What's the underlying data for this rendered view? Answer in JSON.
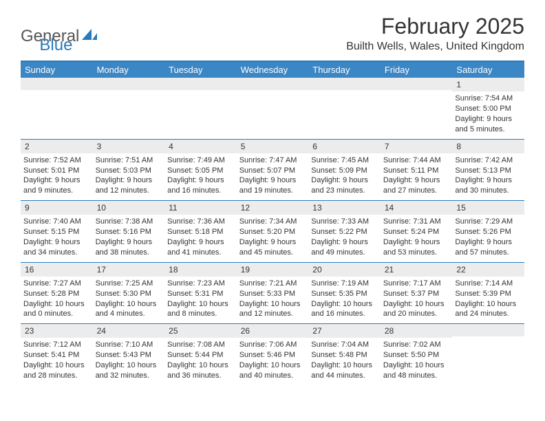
{
  "logo": {
    "part1": "General",
    "part2": "Blue"
  },
  "title": "February 2025",
  "location": "Builth Wells, Wales, United Kingdom",
  "colors": {
    "brand": "#2a7ab9",
    "header_bg": "#3b86c4",
    "day_band": "#ececec",
    "text": "#333333",
    "logo_gray": "#555555"
  },
  "weekdays": [
    "Sunday",
    "Monday",
    "Tuesday",
    "Wednesday",
    "Thursday",
    "Friday",
    "Saturday"
  ],
  "weeks": [
    [
      {
        "blank": true
      },
      {
        "blank": true
      },
      {
        "blank": true
      },
      {
        "blank": true
      },
      {
        "blank": true
      },
      {
        "blank": true
      },
      {
        "n": "1",
        "sunrise": "Sunrise: 7:54 AM",
        "sunset": "Sunset: 5:00 PM",
        "daylight": "Daylight: 9 hours and 5 minutes."
      }
    ],
    [
      {
        "n": "2",
        "sunrise": "Sunrise: 7:52 AM",
        "sunset": "Sunset: 5:01 PM",
        "daylight": "Daylight: 9 hours and 9 minutes."
      },
      {
        "n": "3",
        "sunrise": "Sunrise: 7:51 AM",
        "sunset": "Sunset: 5:03 PM",
        "daylight": "Daylight: 9 hours and 12 minutes."
      },
      {
        "n": "4",
        "sunrise": "Sunrise: 7:49 AM",
        "sunset": "Sunset: 5:05 PM",
        "daylight": "Daylight: 9 hours and 16 minutes."
      },
      {
        "n": "5",
        "sunrise": "Sunrise: 7:47 AM",
        "sunset": "Sunset: 5:07 PM",
        "daylight": "Daylight: 9 hours and 19 minutes."
      },
      {
        "n": "6",
        "sunrise": "Sunrise: 7:45 AM",
        "sunset": "Sunset: 5:09 PM",
        "daylight": "Daylight: 9 hours and 23 minutes."
      },
      {
        "n": "7",
        "sunrise": "Sunrise: 7:44 AM",
        "sunset": "Sunset: 5:11 PM",
        "daylight": "Daylight: 9 hours and 27 minutes."
      },
      {
        "n": "8",
        "sunrise": "Sunrise: 7:42 AM",
        "sunset": "Sunset: 5:13 PM",
        "daylight": "Daylight: 9 hours and 30 minutes."
      }
    ],
    [
      {
        "n": "9",
        "sunrise": "Sunrise: 7:40 AM",
        "sunset": "Sunset: 5:15 PM",
        "daylight": "Daylight: 9 hours and 34 minutes."
      },
      {
        "n": "10",
        "sunrise": "Sunrise: 7:38 AM",
        "sunset": "Sunset: 5:16 PM",
        "daylight": "Daylight: 9 hours and 38 minutes."
      },
      {
        "n": "11",
        "sunrise": "Sunrise: 7:36 AM",
        "sunset": "Sunset: 5:18 PM",
        "daylight": "Daylight: 9 hours and 41 minutes."
      },
      {
        "n": "12",
        "sunrise": "Sunrise: 7:34 AM",
        "sunset": "Sunset: 5:20 PM",
        "daylight": "Daylight: 9 hours and 45 minutes."
      },
      {
        "n": "13",
        "sunrise": "Sunrise: 7:33 AM",
        "sunset": "Sunset: 5:22 PM",
        "daylight": "Daylight: 9 hours and 49 minutes."
      },
      {
        "n": "14",
        "sunrise": "Sunrise: 7:31 AM",
        "sunset": "Sunset: 5:24 PM",
        "daylight": "Daylight: 9 hours and 53 minutes."
      },
      {
        "n": "15",
        "sunrise": "Sunrise: 7:29 AM",
        "sunset": "Sunset: 5:26 PM",
        "daylight": "Daylight: 9 hours and 57 minutes."
      }
    ],
    [
      {
        "n": "16",
        "sunrise": "Sunrise: 7:27 AM",
        "sunset": "Sunset: 5:28 PM",
        "daylight": "Daylight: 10 hours and 0 minutes."
      },
      {
        "n": "17",
        "sunrise": "Sunrise: 7:25 AM",
        "sunset": "Sunset: 5:30 PM",
        "daylight": "Daylight: 10 hours and 4 minutes."
      },
      {
        "n": "18",
        "sunrise": "Sunrise: 7:23 AM",
        "sunset": "Sunset: 5:31 PM",
        "daylight": "Daylight: 10 hours and 8 minutes."
      },
      {
        "n": "19",
        "sunrise": "Sunrise: 7:21 AM",
        "sunset": "Sunset: 5:33 PM",
        "daylight": "Daylight: 10 hours and 12 minutes."
      },
      {
        "n": "20",
        "sunrise": "Sunrise: 7:19 AM",
        "sunset": "Sunset: 5:35 PM",
        "daylight": "Daylight: 10 hours and 16 minutes."
      },
      {
        "n": "21",
        "sunrise": "Sunrise: 7:17 AM",
        "sunset": "Sunset: 5:37 PM",
        "daylight": "Daylight: 10 hours and 20 minutes."
      },
      {
        "n": "22",
        "sunrise": "Sunrise: 7:14 AM",
        "sunset": "Sunset: 5:39 PM",
        "daylight": "Daylight: 10 hours and 24 minutes."
      }
    ],
    [
      {
        "n": "23",
        "sunrise": "Sunrise: 7:12 AM",
        "sunset": "Sunset: 5:41 PM",
        "daylight": "Daylight: 10 hours and 28 minutes."
      },
      {
        "n": "24",
        "sunrise": "Sunrise: 7:10 AM",
        "sunset": "Sunset: 5:43 PM",
        "daylight": "Daylight: 10 hours and 32 minutes."
      },
      {
        "n": "25",
        "sunrise": "Sunrise: 7:08 AM",
        "sunset": "Sunset: 5:44 PM",
        "daylight": "Daylight: 10 hours and 36 minutes."
      },
      {
        "n": "26",
        "sunrise": "Sunrise: 7:06 AM",
        "sunset": "Sunset: 5:46 PM",
        "daylight": "Daylight: 10 hours and 40 minutes."
      },
      {
        "n": "27",
        "sunrise": "Sunrise: 7:04 AM",
        "sunset": "Sunset: 5:48 PM",
        "daylight": "Daylight: 10 hours and 44 minutes."
      },
      {
        "n": "28",
        "sunrise": "Sunrise: 7:02 AM",
        "sunset": "Sunset: 5:50 PM",
        "daylight": "Daylight: 10 hours and 48 minutes."
      },
      {
        "blank": true
      }
    ]
  ]
}
